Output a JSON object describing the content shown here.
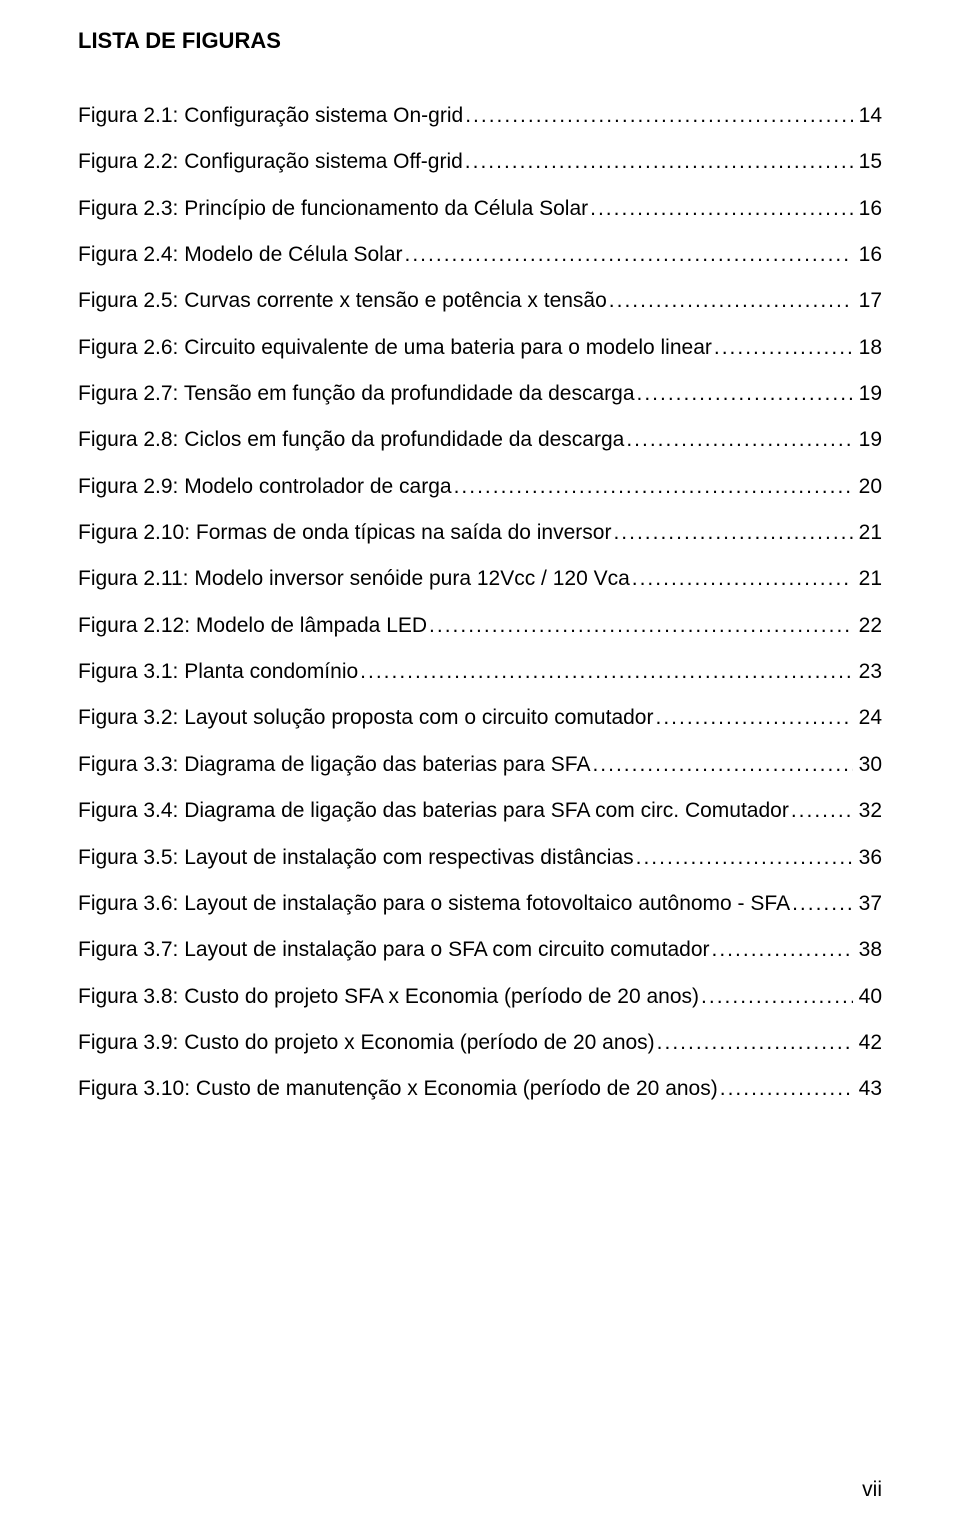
{
  "title": "LISTA DE FIGURAS",
  "text_color": "#000000",
  "background_color": "#ffffff",
  "font_family": "Arial",
  "title_fontsize": 22,
  "body_fontsize": 21,
  "page_number": "vii",
  "entries": [
    {
      "label": "Figura 2.1: Configuração sistema On-grid",
      "page": "14"
    },
    {
      "label": "Figura 2.2: Configuração sistema Off-grid",
      "page": "15"
    },
    {
      "label": "Figura 2.3: Princípio de funcionamento da Célula Solar",
      "page": "16"
    },
    {
      "label": "Figura 2.4: Modelo de Célula Solar",
      "page": "16"
    },
    {
      "label": "Figura 2.5: Curvas corrente x tensão e potência x tensão",
      "page": "17"
    },
    {
      "label": "Figura 2.6: Circuito equivalente de uma bateria para o modelo linear",
      "page": "18"
    },
    {
      "label": "Figura 2.7: Tensão em função da profundidade da descarga",
      "page": "19"
    },
    {
      "label": "Figura 2.8: Ciclos em função da profundidade da descarga",
      "page": "19"
    },
    {
      "label": "Figura 2.9: Modelo controlador de carga",
      "page": "20"
    },
    {
      "label": "Figura 2.10: Formas de onda típicas na saída do inversor",
      "page": "21"
    },
    {
      "label": "Figura 2.11: Modelo inversor senóide pura 12Vcc / 120 Vca",
      "page": "21"
    },
    {
      "label": "Figura 2.12: Modelo de lâmpada LED",
      "page": "22"
    },
    {
      "label": "Figura 3.1: Planta condomínio",
      "page": "23"
    },
    {
      "label": "Figura 3.2: Layout solução proposta com o circuito comutador",
      "page": "24"
    },
    {
      "label": "Figura 3.3: Diagrama de ligação das baterias para SFA",
      "page": "30"
    },
    {
      "label": "Figura 3.4: Diagrama de ligação das baterias para SFA com circ. Comutador",
      "page": "32"
    },
    {
      "label": "Figura 3.5: Layout de instalação com respectivas distâncias",
      "page": "36"
    },
    {
      "label": "Figura 3.6: Layout de instalação para o sistema fotovoltaico autônomo - SFA",
      "page": "37"
    },
    {
      "label": "Figura 3.7: Layout de instalação para o SFA com circuito comutador",
      "page": "38"
    },
    {
      "label": "Figura 3.8: Custo do projeto SFA x Economia (período de 20 anos)",
      "page": "40"
    },
    {
      "label": "Figura 3.9: Custo do projeto x Economia (período de 20 anos)",
      "page": "42"
    },
    {
      "label": "Figura 3.10: Custo de manutenção x Economia (período de 20 anos)",
      "page": "43"
    }
  ]
}
